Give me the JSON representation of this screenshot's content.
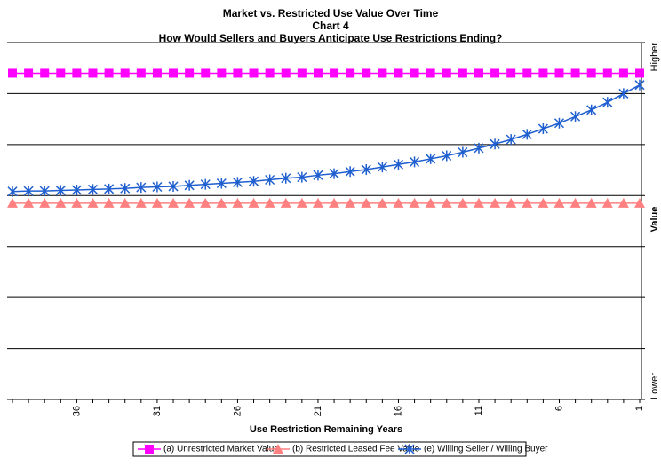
{
  "chart_data": {
    "type": "line",
    "title": "Market vs. Restricted Use Value Over Time",
    "subtitle": "Chart 4",
    "subtitle2": "How Would Sellers and Buyers Anticipate Use Restrictions Ending?",
    "x_label": "Use Restriction Remaining Years",
    "y_label": "Value",
    "categories": [
      null,
      null,
      null,
      null,
      36,
      null,
      null,
      null,
      null,
      31,
      null,
      null,
      null,
      null,
      26,
      null,
      null,
      null,
      null,
      21,
      null,
      null,
      null,
      null,
      16,
      null,
      null,
      null,
      null,
      11,
      null,
      null,
      null,
      null,
      6,
      null,
      null,
      null,
      null,
      1
    ],
    "ylim": [
      0,
      7
    ],
    "yticks": [
      {
        "value": 0,
        "label": "Lower"
      },
      1,
      2,
      3,
      4,
      5,
      6,
      {
        "value": 7,
        "label": "Higher"
      }
    ],
    "grid": true,
    "series": [
      {
        "name": "(a) Unrestricted Market Value",
        "color": "#ff00ff",
        "marker": "square",
        "values": [
          6.4,
          6.4,
          6.4,
          6.4,
          6.4,
          6.4,
          6.4,
          6.4,
          6.4,
          6.4,
          6.4,
          6.4,
          6.4,
          6.4,
          6.4,
          6.4,
          6.4,
          6.4,
          6.4,
          6.4,
          6.4,
          6.4,
          6.4,
          6.4,
          6.4,
          6.4,
          6.4,
          6.4,
          6.4,
          6.4,
          6.4,
          6.4,
          6.4,
          6.4,
          6.4,
          6.4,
          6.4,
          6.4,
          6.4,
          6.4
        ]
      },
      {
        "name": "(b) Restricted Leased Fee Value",
        "color": "#ff8080",
        "marker": "triangle",
        "values": [
          3.85,
          3.85,
          3.85,
          3.85,
          3.85,
          3.85,
          3.85,
          3.85,
          3.85,
          3.85,
          3.85,
          3.85,
          3.85,
          3.85,
          3.85,
          3.85,
          3.85,
          3.85,
          3.85,
          3.85,
          3.85,
          3.85,
          3.85,
          3.85,
          3.85,
          3.85,
          3.85,
          3.85,
          3.85,
          3.85,
          3.85,
          3.85,
          3.85,
          3.85,
          3.85,
          3.85,
          3.85,
          3.85,
          3.85,
          3.85
        ]
      },
      {
        "name": "(e) Willing Seller / Willing Buyer",
        "color": "#1f5fcf",
        "marker": "star",
        "values": [
          4.08,
          4.09,
          4.09,
          4.1,
          4.11,
          4.12,
          4.13,
          4.14,
          4.16,
          4.17,
          4.18,
          4.2,
          4.22,
          4.24,
          4.26,
          4.28,
          4.31,
          4.34,
          4.36,
          4.4,
          4.43,
          4.47,
          4.51,
          4.56,
          4.61,
          4.66,
          4.72,
          4.78,
          4.85,
          4.93,
          5.01,
          5.1,
          5.2,
          5.31,
          5.42,
          5.55,
          5.68,
          5.83,
          6.0,
          6.17
        ]
      }
    ]
  }
}
